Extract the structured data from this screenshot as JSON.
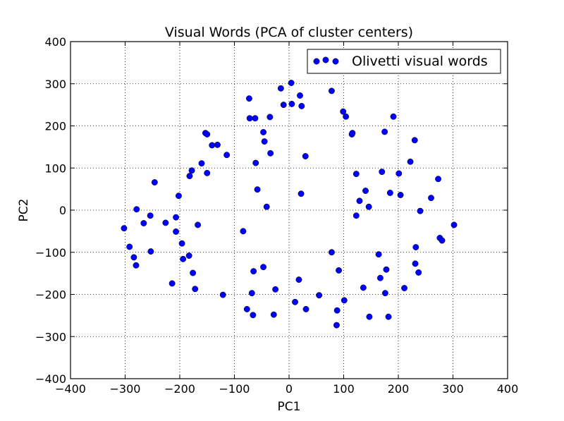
{
  "chart_data": {
    "type": "scatter",
    "title": "Visual Words (PCA of cluster centers)",
    "xlabel": "PC1",
    "ylabel": "PC2",
    "xlim": [
      -400,
      400
    ],
    "ylim": [
      -400,
      400
    ],
    "xticks": [
      -400,
      -300,
      -200,
      -100,
      0,
      100,
      200,
      300,
      400
    ],
    "yticks": [
      -400,
      -300,
      -200,
      -100,
      0,
      100,
      200,
      300,
      400
    ],
    "grid": true,
    "legend_position": "top-right",
    "series": [
      {
        "name": "Olivetti visual words",
        "color": "#0000ff",
        "points": [
          [
            -302,
            -43
          ],
          [
            -292,
            -87
          ],
          [
            -284,
            -112
          ],
          [
            -280,
            -131
          ],
          [
            -279,
            2
          ],
          [
            -266,
            -31
          ],
          [
            -254,
            -13
          ],
          [
            -253,
            -98
          ],
          [
            -246,
            66
          ],
          [
            -226,
            -30
          ],
          [
            -214,
            -174
          ],
          [
            -207,
            -17
          ],
          [
            -207,
            -51
          ],
          [
            -202,
            34
          ],
          [
            -196,
            -79
          ],
          [
            -194,
            -116
          ],
          [
            -183,
            -108
          ],
          [
            -182,
            81
          ],
          [
            -178,
            94
          ],
          [
            -176,
            -149
          ],
          [
            -172,
            -187
          ],
          [
            -167,
            -35
          ],
          [
            -160,
            111
          ],
          [
            -153,
            183
          ],
          [
            -150,
            180
          ],
          [
            -150,
            88
          ],
          [
            -141,
            154
          ],
          [
            -131,
            155
          ],
          [
            -121,
            -201
          ],
          [
            -114,
            131
          ],
          [
            -84,
            -50
          ],
          [
            -77,
            -235
          ],
          [
            -73,
            265
          ],
          [
            -72,
            218
          ],
          [
            -68,
            -197
          ],
          [
            -66,
            -249
          ],
          [
            -65,
            -145
          ],
          [
            -62,
            218
          ],
          [
            -61,
            112
          ],
          [
            -58,
            49
          ],
          [
            -47,
            185
          ],
          [
            -47,
            -135
          ],
          [
            -45,
            163
          ],
          [
            -41,
            8
          ],
          [
            -35,
            221
          ],
          [
            -34,
            135
          ],
          [
            -28,
            -248
          ],
          [
            -25,
            -188
          ],
          [
            -15,
            289
          ],
          [
            -10,
            250
          ],
          [
            4,
            302
          ],
          [
            5,
            252
          ],
          [
            11,
            -218
          ],
          [
            18,
            -165
          ],
          [
            20,
            272
          ],
          [
            22,
            39
          ],
          [
            23,
            247
          ],
          [
            30,
            128
          ],
          [
            31,
            -235
          ],
          [
            55,
            -202
          ],
          [
            78,
            283
          ],
          [
            78,
            -100
          ],
          [
            87,
            -273
          ],
          [
            88,
            -238
          ],
          [
            91,
            -143
          ],
          [
            99,
            234
          ],
          [
            101,
            -214
          ],
          [
            104,
            222
          ],
          [
            115,
            180
          ],
          [
            116,
            183
          ],
          [
            123,
            86
          ],
          [
            123,
            -13
          ],
          [
            129,
            22
          ],
          [
            136,
            -184
          ],
          [
            140,
            46
          ],
          [
            146,
            8
          ],
          [
            147,
            -253
          ],
          [
            164,
            -105
          ],
          [
            167,
            -161
          ],
          [
            170,
            91
          ],
          [
            175,
            186
          ],
          [
            176,
            -197
          ],
          [
            178,
            -141
          ],
          [
            182,
            -253
          ],
          [
            185,
            41
          ],
          [
            191,
            222
          ],
          [
            201,
            87
          ],
          [
            204,
            36
          ],
          [
            211,
            -185
          ],
          [
            222,
            115
          ],
          [
            230,
            166
          ],
          [
            231,
            -127
          ],
          [
            232,
            -88
          ],
          [
            237,
            -148
          ],
          [
            240,
            -2
          ],
          [
            260,
            29
          ],
          [
            273,
            74
          ],
          [
            276,
            -66
          ],
          [
            280,
            -72
          ],
          [
            302,
            -35
          ]
        ]
      }
    ]
  }
}
